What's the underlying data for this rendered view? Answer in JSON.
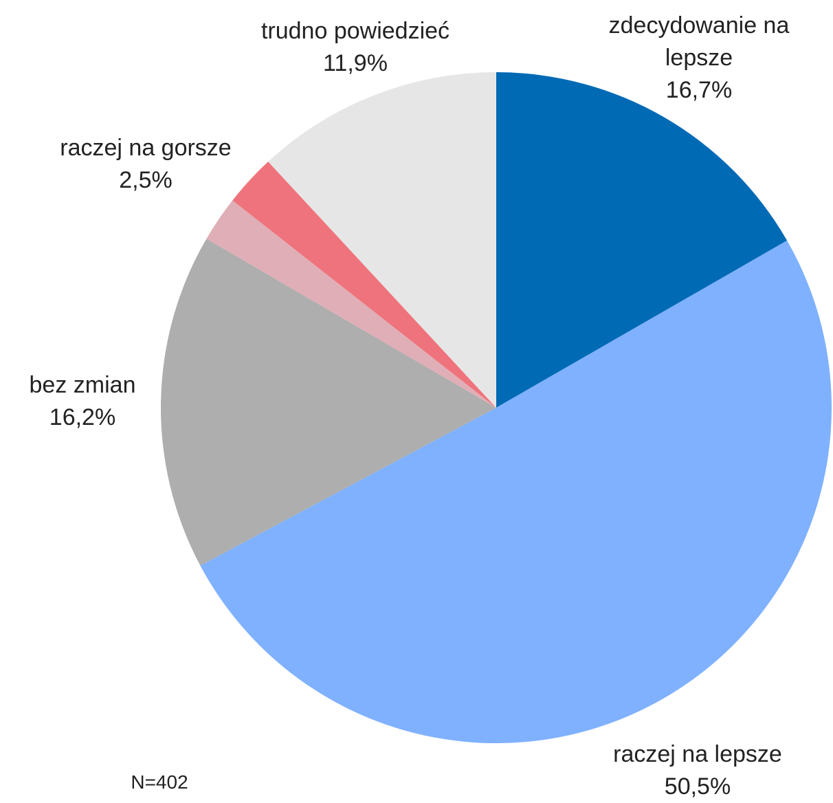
{
  "chart_data": {
    "type": "pie",
    "categories": [
      "zdecydowanie na lepsze",
      "raczej na lepsze",
      "bez zmian",
      null,
      "raczej na gorsze",
      "trudno powiedzieć"
    ],
    "values": [
      16.7,
      50.5,
      16.2,
      2.2,
      2.5,
      11.9
    ],
    "value_labels": [
      "16,7%",
      "50,5%",
      "16,2%",
      null,
      "2,5%",
      "11,9%"
    ],
    "colors": [
      "#006ab5",
      "#7fb1ff",
      "#aeaeae",
      "#e0aeb6",
      "#ef737c",
      "#e6e6e6"
    ],
    "note": "N=402"
  }
}
